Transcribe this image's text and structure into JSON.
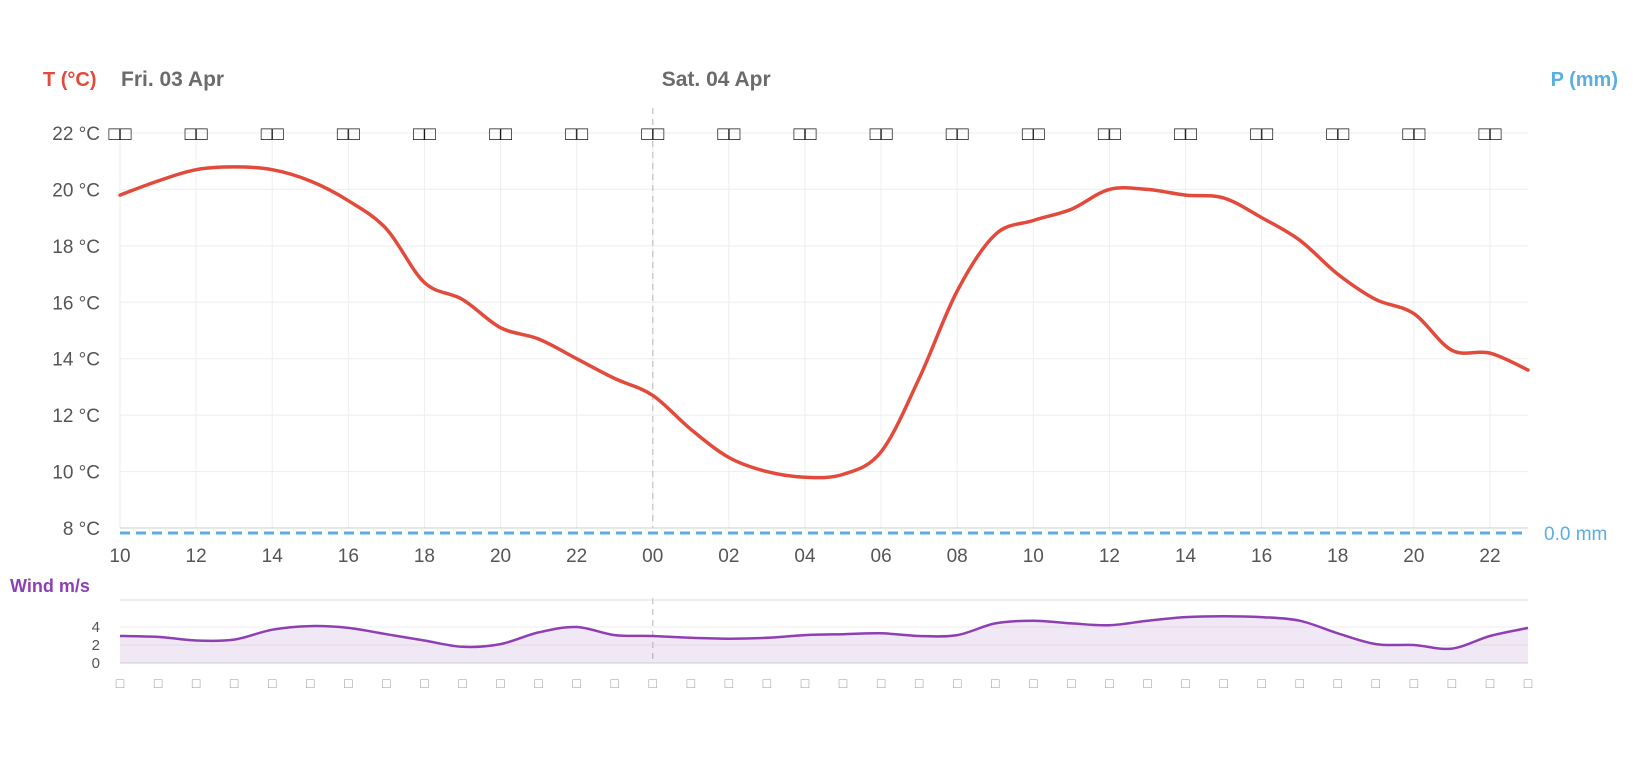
{
  "chart_data": [
    {
      "type": "line",
      "title": "",
      "y_axis_title": "T (°C)",
      "y2_axis_title": "P (mm)",
      "day_labels": [
        {
          "hour": 10,
          "label": "Fri. 03 Apr"
        },
        {
          "hour": 24,
          "label": "Sat. 04 Apr"
        }
      ],
      "x_hours_from": 10,
      "x_hours_to": 47,
      "x_tick_labels": [
        "10",
        "12",
        "14",
        "16",
        "18",
        "20",
        "22",
        "00",
        "02",
        "04",
        "06",
        "08",
        "10",
        "12",
        "14",
        "16",
        "18",
        "20",
        "22"
      ],
      "y_ticks": [
        8,
        10,
        12,
        14,
        16,
        18,
        20,
        22
      ],
      "y_tick_labels": [
        "8 °C",
        "10 °C",
        "12 °C",
        "14 °C",
        "16 °C",
        "18 °C",
        "20 °C",
        "22 °C"
      ],
      "ylim": [
        8,
        22
      ],
      "grid": true,
      "series": [
        {
          "name": "T (°C)",
          "color": "#e24a3b",
          "x": [
            10,
            11,
            12,
            13,
            14,
            15,
            16,
            17,
            18,
            19,
            20,
            21,
            22,
            23,
            24,
            25,
            26,
            27,
            28,
            29,
            30,
            31,
            32,
            33,
            34,
            35,
            36,
            37,
            38,
            39,
            40,
            41,
            42,
            43,
            44,
            45,
            46,
            47
          ],
          "values": [
            19.8,
            20.3,
            20.7,
            20.8,
            20.7,
            20.3,
            19.6,
            18.6,
            16.7,
            16.1,
            15.1,
            14.7,
            14.0,
            13.3,
            12.7,
            11.5,
            10.5,
            10.0,
            9.8,
            9.9,
            10.7,
            13.3,
            16.4,
            18.4,
            18.9,
            19.3,
            20.0,
            20.0,
            19.8,
            19.7,
            19.0,
            18.2,
            17.0,
            16.1,
            15.6,
            14.3,
            14.2,
            13.6
          ]
        },
        {
          "name": "P (mm)",
          "color": "#5aaee0",
          "dashed": true,
          "values_constant": 0.0,
          "label": "0.0 mm"
        }
      ],
      "icons_row_label": "□□"
    },
    {
      "type": "area",
      "y_axis_title": "Wind m/s",
      "x_hours_from": 10,
      "x_hours_to": 47,
      "y_ticks": [
        0,
        2,
        4
      ],
      "ylim": [
        0,
        7
      ],
      "grid": true,
      "series": [
        {
          "name": "Wind m/s",
          "color": "#8e3fb4",
          "x": [
            10,
            11,
            12,
            13,
            14,
            15,
            16,
            17,
            18,
            19,
            20,
            21,
            22,
            23,
            24,
            25,
            26,
            27,
            28,
            29,
            30,
            31,
            32,
            33,
            34,
            35,
            36,
            37,
            38,
            39,
            40,
            41,
            42,
            43,
            44,
            45,
            46,
            47
          ],
          "values": [
            3.0,
            2.9,
            2.5,
            2.6,
            3.7,
            4.1,
            3.9,
            3.2,
            2.5,
            1.8,
            2.1,
            3.4,
            4.0,
            3.1,
            3.0,
            2.8,
            2.7,
            2.8,
            3.1,
            3.2,
            3.3,
            3.0,
            3.1,
            4.4,
            4.7,
            4.4,
            4.2,
            4.7,
            5.1,
            5.2,
            5.1,
            4.7,
            3.3,
            2.1,
            2.0,
            1.6,
            3.0,
            3.9
          ]
        }
      ],
      "direction_glyph": "□"
    }
  ]
}
